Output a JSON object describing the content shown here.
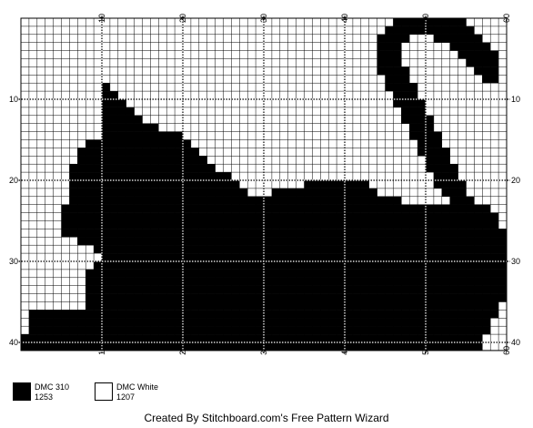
{
  "pattern": {
    "columns": 60,
    "rows": 41,
    "major_every": 10,
    "cell_colors": {
      "filled": "#000000",
      "empty": "#ffffff"
    },
    "grid_line_color": "#000000",
    "column_labels": [
      "10",
      "20",
      "30",
      "40",
      "50",
      "60"
    ],
    "row_labels": [
      "10",
      "20",
      "30",
      "40"
    ]
  },
  "legend": [
    {
      "name": "DMC 310",
      "code": "1253",
      "color": "#000000"
    },
    {
      "name": "DMC White",
      "code": "1207",
      "color": "#ffffff"
    }
  ],
  "footer": {
    "text": "Created By Stitchboard.com's Free Pattern Wizard"
  }
}
